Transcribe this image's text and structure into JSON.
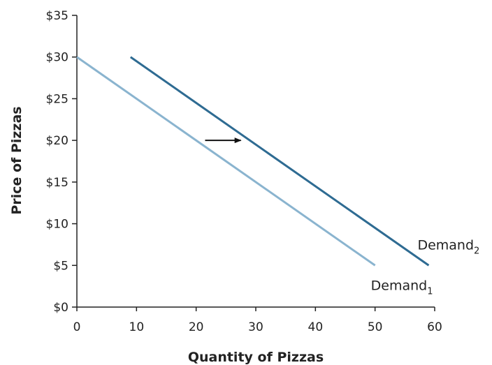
{
  "chart_data": {
    "type": "line",
    "title": "",
    "xlabel": "Quantity of Pizzas",
    "ylabel": "Price of Pizzas",
    "xlim": [
      0,
      60
    ],
    "ylim": [
      0,
      35
    ],
    "xticks": [
      0,
      10,
      20,
      30,
      40,
      50,
      60
    ],
    "yticks": [
      0,
      5,
      10,
      15,
      20,
      25,
      30,
      35
    ],
    "xtick_labels": [
      "0",
      "10",
      "20",
      "30",
      "40",
      "50",
      "60"
    ],
    "ytick_labels": [
      "$0",
      "$5",
      "$10",
      "$15",
      "$20",
      "$25",
      "$30",
      "$35"
    ],
    "grid": false,
    "legend": "none",
    "series": [
      {
        "name": "Demand",
        "subscript": "1",
        "color": "#8ab4cf",
        "x": [
          0,
          50
        ],
        "y": [
          30,
          5
        ]
      },
      {
        "name": "Demand",
        "subscript": "2",
        "color": "#2e6b92",
        "x": [
          9,
          59
        ],
        "y": [
          30,
          5
        ]
      }
    ],
    "annotations": [
      {
        "type": "arrow",
        "from": [
          21.5,
          20
        ],
        "to": [
          27.5,
          20
        ],
        "color": "#111111"
      }
    ]
  }
}
